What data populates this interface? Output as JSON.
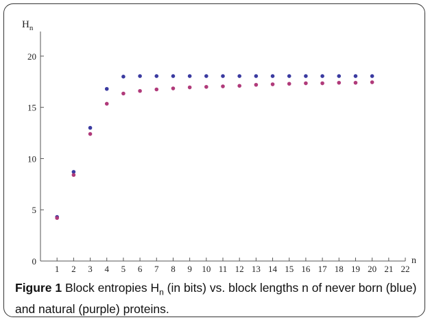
{
  "chart_data": {
    "type": "scatter",
    "title": "",
    "xlabel": "n",
    "ylabel": "H",
    "ylabel_sub": "n",
    "xlim": [
      0,
      22
    ],
    "ylim": [
      0,
      22
    ],
    "xticks": [
      1,
      2,
      3,
      4,
      5,
      6,
      7,
      8,
      9,
      10,
      11,
      12,
      13,
      14,
      15,
      16,
      17,
      18,
      19,
      20,
      21,
      22
    ],
    "yticks": [
      0,
      5,
      10,
      15,
      20
    ],
    "grid": false,
    "x": [
      1,
      2,
      3,
      4,
      5,
      6,
      7,
      8,
      9,
      10,
      11,
      12,
      13,
      14,
      15,
      16,
      17,
      18,
      19,
      20
    ],
    "series": [
      {
        "name": "never born",
        "color": "#3a3aa0",
        "values": [
          4.3,
          8.7,
          13.0,
          16.8,
          18.0,
          18.05,
          18.05,
          18.05,
          18.05,
          18.05,
          18.05,
          18.05,
          18.05,
          18.05,
          18.05,
          18.05,
          18.05,
          18.05,
          18.05,
          18.05
        ]
      },
      {
        "name": "natural",
        "color": "#b03a7a",
        "values": [
          4.2,
          8.4,
          12.4,
          15.35,
          16.35,
          16.6,
          16.75,
          16.85,
          16.95,
          17.0,
          17.05,
          17.1,
          17.2,
          17.25,
          17.3,
          17.35,
          17.35,
          17.4,
          17.4,
          17.45
        ]
      }
    ]
  },
  "caption": {
    "label": "Figure 1",
    "text_1": " Block entropies H",
    "sub": "n",
    "text_2": " (in bits) vs. block lengths n of never born (blue) and natural (purple) proteins."
  }
}
